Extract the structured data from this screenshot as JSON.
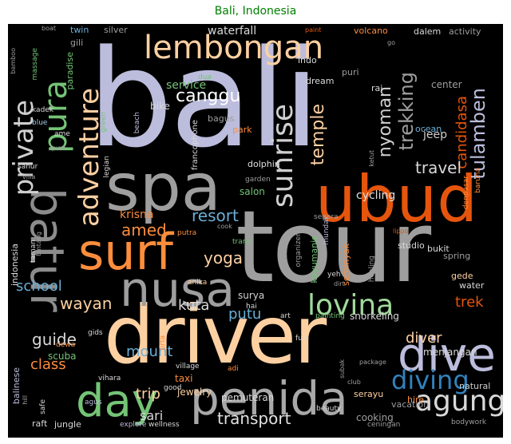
{
  "title": "Bali, Indonesia",
  "colors": {
    "title": "#008000",
    "background": "#000000",
    "lavender": "#bcbddc",
    "orange": "#e6550d",
    "peach": "#fdd0a2",
    "gray": "#9e9e9e",
    "green": "#74c476",
    "blue": "#6baed6"
  },
  "words": [
    "bali",
    "tour",
    "driver",
    "ubud",
    "spa",
    "surf",
    "nusa",
    "penida",
    "dive",
    "day",
    "lembongan",
    "batur",
    "pura",
    "adventure",
    "private",
    "sunrise",
    "agung",
    "lovina",
    "diving",
    "canggu",
    "trekking",
    "candidasa",
    "tulamben",
    "temple",
    "nyoman",
    "travel",
    "amed",
    "resort",
    "yoga",
    "wayan",
    "kuta",
    "putu",
    "school",
    "guide",
    "class",
    "mount",
    "trip",
    "sari",
    "transport",
    "diver",
    "trek",
    "jeep",
    "cycling",
    "salon",
    "krisna",
    "service",
    "waterfall",
    "bike",
    "center",
    "ocean",
    "bagus",
    "park",
    "dolphin",
    "menjangan",
    "scuba",
    "pemuteran",
    "jewelry",
    "surya",
    "snorkeling",
    "cooking",
    "taxi",
    "seminyak",
    "kayumanis",
    "bukit",
    "studio",
    "gede",
    "spring",
    "water",
    "natural",
    "hire",
    "serayu",
    "vacation",
    "bodywork",
    "balinese",
    "raft",
    "jungle",
    "explore",
    "wellness",
    "ceningan",
    "beauty",
    "agus",
    "good",
    "village",
    "vihara",
    "dewa",
    "gids",
    "fun",
    "yeh",
    "art",
    "hai",
    "anika",
    "tirta",
    "adi",
    "subak",
    "club",
    "package",
    "painting",
    "healing",
    "indonesia",
    "taman",
    "twin",
    "gili",
    "paradise",
    "silver",
    "volcano",
    "dalem",
    "activity",
    "indo",
    "dua",
    "dream",
    "puri",
    "rai",
    "ubud",
    "blue",
    "green",
    "beach",
    "kadek",
    "ame",
    "massage",
    "boat",
    "bamboo",
    "quad",
    "sanur",
    "villa",
    "legian",
    "bintang",
    "francophone",
    "garden",
    "explorer",
    "cook",
    "trans",
    "putra",
    "organizer",
    "mundak",
    "ketut",
    "denpasar",
    "baruna",
    "lippo",
    "segara",
    "dirt",
    "academy",
    "amazing",
    "journey",
    "monkey",
    "klungkung",
    "shala",
    "paint",
    "go",
    "bliss",
    "west",
    "museum",
    "hill",
    "fast",
    "safe",
    "atv",
    "tukad"
  ]
}
